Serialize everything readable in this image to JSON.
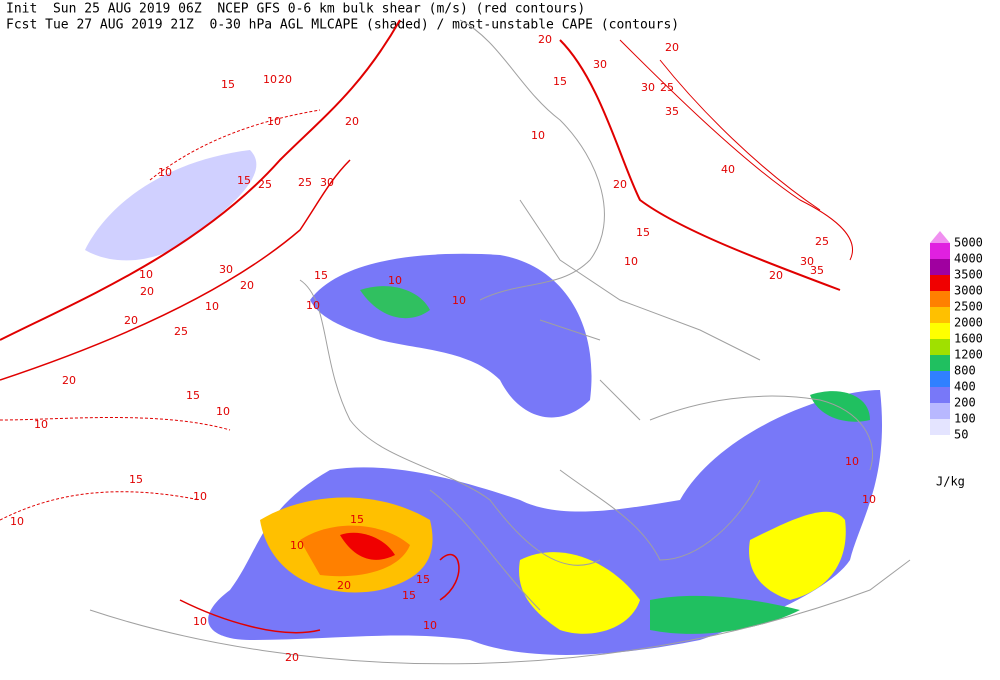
{
  "header": {
    "line1": "Init  Sun 25 AUG 2019 06Z  NCEP GFS 0-6 km bulk shear (m/s) (red contours)",
    "line2": "Fcst Tue 27 AUG 2019 21Z  0-30 hPa AGL MLCAPE (shaded) / most-unstable CAPE (contours)"
  },
  "legend": {
    "unit": "J/kg",
    "entries": [
      {
        "label": "5000",
        "color": "#f090f0"
      },
      {
        "label": "4000",
        "color": "#e020e0"
      },
      {
        "label": "3500",
        "color": "#a000a0"
      },
      {
        "label": "3000",
        "color": "#f00000"
      },
      {
        "label": "2500",
        "color": "#ff8000"
      },
      {
        "label": "2000",
        "color": "#ffc000"
      },
      {
        "label": "1600",
        "color": "#ffff00"
      },
      {
        "label": "1200",
        "color": "#a0e000"
      },
      {
        "label": "800",
        "color": "#20c060"
      },
      {
        "label": "400",
        "color": "#3080ff"
      },
      {
        "label": "200",
        "color": "#7878f8"
      },
      {
        "label": "100",
        "color": "#b8b8ff"
      },
      {
        "label": "50",
        "color": "#e4e4ff"
      }
    ]
  },
  "contour_labels": [
    20,
    30,
    20,
    25,
    30,
    15,
    35,
    40,
    20,
    15,
    10,
    35,
    25,
    30,
    20,
    10,
    15,
    20,
    20,
    10,
    10,
    15,
    25,
    25,
    30,
    10,
    30,
    20,
    10,
    20,
    20,
    25,
    10,
    20,
    10,
    10,
    10,
    15,
    15,
    10,
    10,
    15,
    10,
    15,
    10,
    20,
    15,
    15,
    10,
    10,
    20,
    10,
    10,
    10
  ]
}
